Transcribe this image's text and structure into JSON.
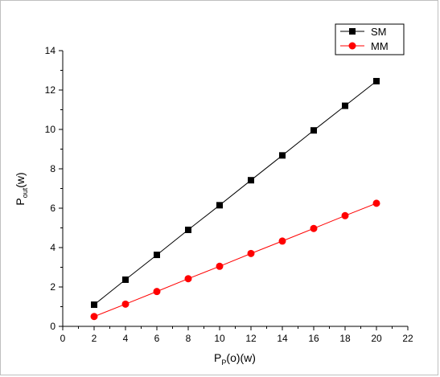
{
  "chart_data": {
    "type": "line",
    "x": [
      2,
      4,
      6,
      8,
      10,
      12,
      14,
      16,
      18,
      20
    ],
    "series": [
      {
        "name": "SM",
        "values": [
          1.1,
          2.37,
          3.63,
          4.9,
          6.15,
          7.42,
          8.68,
          9.95,
          11.2,
          12.45
        ],
        "color": "#000000",
        "marker": "square"
      },
      {
        "name": "MM",
        "values": [
          0.5,
          1.13,
          1.77,
          2.42,
          3.05,
          3.7,
          4.33,
          4.97,
          5.62,
          6.25
        ],
        "color": "#ff0000",
        "marker": "circle"
      }
    ],
    "xlabel_main": "P",
    "xlabel_sub": "P",
    "xlabel_rest": "(o)(w)",
    "ylabel_main": "P",
    "ylabel_sub": "out",
    "ylabel_rest": "(w)",
    "xlim": [
      0,
      22
    ],
    "ylim": [
      0,
      14
    ],
    "xticks": [
      0,
      2,
      4,
      6,
      8,
      10,
      12,
      14,
      16,
      18,
      20,
      22
    ],
    "yticks": [
      0,
      2,
      4,
      6,
      8,
      10,
      12,
      14
    ],
    "grid": false,
    "legend_position": "top-right"
  }
}
